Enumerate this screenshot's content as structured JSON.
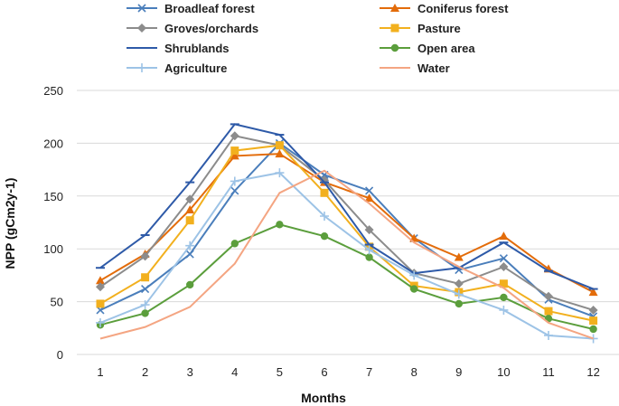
{
  "chart_data": {
    "type": "line",
    "title": "",
    "xlabel": "Months",
    "ylabel": "NPP (gCm2y-1)",
    "categories": [
      "1",
      "2",
      "3",
      "4",
      "5",
      "6",
      "7",
      "8",
      "9",
      "10",
      "11",
      "12"
    ],
    "ylim": [
      0,
      250
    ],
    "yticks": [
      "0",
      "50",
      "100",
      "150",
      "200",
      "250"
    ],
    "grid": "horizontal",
    "legend_position": "top",
    "series": [
      {
        "name": "Broadleaf forest",
        "color": "#4a7ebb",
        "marker": "x",
        "values": [
          42,
          62,
          95,
          155,
          200,
          170,
          155,
          110,
          80,
          91,
          52,
          36
        ]
      },
      {
        "name": "Coniferus forest",
        "color": "#e36c0a",
        "marker": "triangle",
        "values": [
          70,
          95,
          137,
          188,
          190,
          163,
          148,
          110,
          92,
          112,
          81,
          59
        ]
      },
      {
        "name": "Groves/orchards",
        "color": "#8c8c8c",
        "marker": "diamond",
        "values": [
          64,
          93,
          147,
          207,
          198,
          165,
          118,
          77,
          67,
          83,
          55,
          42
        ]
      },
      {
        "name": "Pasture",
        "color": "#f2b01e",
        "marker": "square",
        "values": [
          48,
          73,
          127,
          193,
          198,
          153,
          102,
          65,
          59,
          67,
          41,
          32
        ]
      },
      {
        "name": "Shrublands",
        "color": "#2e5aa8",
        "marker": "dash",
        "values": [
          82,
          113,
          163,
          218,
          208,
          163,
          104,
          77,
          82,
          106,
          79,
          62
        ]
      },
      {
        "name": "Open area",
        "color": "#5b9e3c",
        "marker": "circle",
        "values": [
          28,
          39,
          66,
          105,
          123,
          112,
          92,
          62,
          48,
          54,
          34,
          24
        ]
      },
      {
        "name": "Agriculture",
        "color": "#9dc3e6",
        "marker": "plus",
        "values": [
          30,
          47,
          103,
          164,
          172,
          131,
          99,
          75,
          57,
          42,
          18,
          15
        ]
      },
      {
        "name": "Water",
        "color": "#f4a582",
        "marker": "none",
        "values": [
          15,
          26,
          45,
          86,
          153,
          174,
          143,
          106,
          83,
          63,
          30,
          15
        ]
      }
    ],
    "legend_order": [
      "Broadleaf forest",
      "Coniferus forest",
      "Groves/orchards",
      "Pasture",
      "Shrublands",
      "Open area",
      "Agriculture",
      "Water"
    ]
  }
}
